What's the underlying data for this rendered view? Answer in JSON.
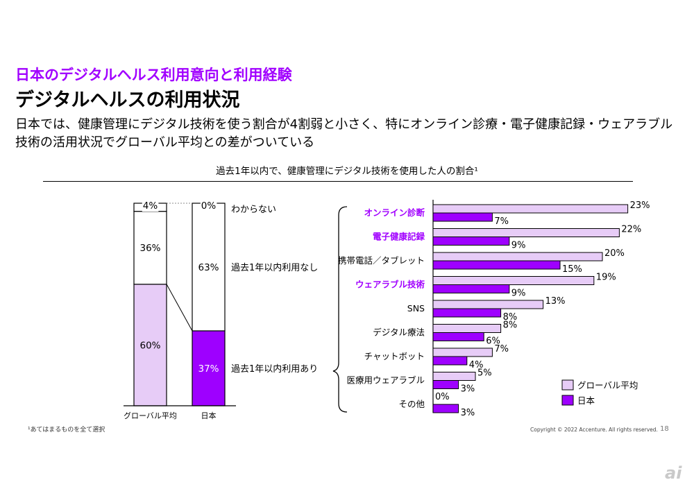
{
  "header": {
    "kicker": "日本のデジタルヘルス利用意向と利用経験",
    "title": "デジタルヘルスの利用状況",
    "lead_line1": "日本では、健康管理にデジタル技術を使う割合が4割弱と小さく、特にオンライン診療・電子健康記録・ウェアラブル",
    "lead_line2": "技術の活用状況でグローバル平均との差がついている"
  },
  "chart_title": "過去1年以内で、健康管理にデジタル技術を使用した人の割合¹",
  "colors": {
    "accent": "#a100ff",
    "japan": "#9e00ff",
    "global_light": "#e7ccf7",
    "bar_border": "#000000"
  },
  "chart_data": [
    {
      "type": "bar",
      "stacked": true,
      "categories": [
        "グローバル平均",
        "日本"
      ],
      "series": [
        {
          "name": "過去1年以内利用あり",
          "values": [
            60,
            37
          ],
          "labels": [
            "60%",
            "37%"
          ]
        },
        {
          "name": "過去1年以内利用なし",
          "values": [
            36,
            63
          ],
          "labels": [
            "36%",
            "63%"
          ]
        },
        {
          "name": "わからない",
          "values": [
            4,
            0
          ],
          "labels": [
            "4%",
            "0%"
          ]
        }
      ],
      "ylim": [
        0,
        100
      ]
    },
    {
      "type": "bar",
      "orientation": "horizontal",
      "categories": [
        "オンライン診断",
        "電子健康記録",
        "携帯電話／タブレット",
        "ウェアラブル技術",
        "SNS",
        "デジタル療法",
        "チャットボット",
        "医療用ウェアラブル",
        "その他"
      ],
      "highlighted_categories": [
        "オンライン診断",
        "電子健康記録",
        "ウェアラブル技術"
      ],
      "series": [
        {
          "name": "グローバル平均",
          "values": [
            23,
            22,
            20,
            19,
            13,
            8,
            7,
            5,
            0
          ],
          "labels": [
            "23%",
            "22%",
            "20%",
            "19%",
            "13%",
            "8%",
            "7%",
            "5%",
            "0%"
          ]
        },
        {
          "name": "日本",
          "values": [
            7,
            9,
            15,
            9,
            8,
            6,
            4,
            3,
            3
          ],
          "labels": [
            "7%",
            "9%",
            "15%",
            "9%",
            "8%",
            "6%",
            "4%",
            "3%",
            "3%"
          ]
        }
      ],
      "legend_position": "bottom-right",
      "xlim": [
        0,
        23
      ]
    }
  ],
  "footnote": "¹あてはまるものを全て選択",
  "copyright": "Copyright © 2022 Accenture. All rights reserved.",
  "page_number": "18",
  "watermark": "ai"
}
